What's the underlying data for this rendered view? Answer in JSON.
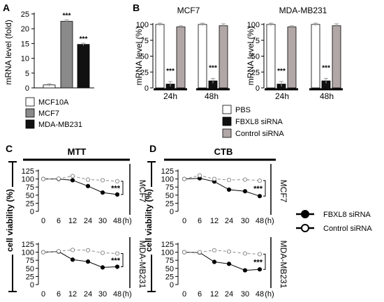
{
  "colors": {
    "white_fill": "#ffffff",
    "gray_fill": "#8a8a8a",
    "black_fill": "#111111",
    "light_gray_fill": "#b2a7a7",
    "error_bar": "#999999",
    "dashed_line": "#8a8a8a"
  },
  "charts": {
    "A": {
      "panel_label": "A",
      "type": "bar",
      "ylabel": "mRNA level (fold)",
      "ylim": [
        0,
        25
      ],
      "yticks": [
        0,
        5,
        10,
        15,
        20,
        25
      ],
      "bars": [
        {
          "name": "MCF10A",
          "value": 1.0,
          "err": 0.4,
          "fill": "white",
          "sig": ""
        },
        {
          "name": "MCF7",
          "value": 22.5,
          "err": 0.5,
          "fill": "gray",
          "sig": "***"
        },
        {
          "name": "MDA-MB231",
          "value": 14.7,
          "err": 0.4,
          "fill": "black",
          "sig": "***"
        }
      ]
    },
    "B": {
      "panel_label": "B",
      "type": "bar",
      "ylabel": "mRNA level (%)",
      "ylim": [
        0,
        100
      ],
      "yticks": [
        0,
        25,
        50,
        75,
        100
      ],
      "legend": [
        {
          "name": "PBS",
          "fill": "white"
        },
        {
          "name": "FBXL8 siRNA",
          "fill": "black"
        },
        {
          "name": "Control siRNA",
          "fill": "light_gray"
        }
      ],
      "subcharts": [
        {
          "title": "MCF7",
          "groups": [
            {
              "label": "24h",
              "values": [
                100,
                6,
                96
              ],
              "errs": [
                2,
                4,
                2
              ],
              "sig": [
                "",
                "***",
                ""
              ]
            },
            {
              "label": "48h",
              "values": [
                100,
                11,
                98
              ],
              "errs": [
                2,
                4,
                3
              ],
              "sig": [
                "",
                "***",
                ""
              ]
            }
          ]
        },
        {
          "title": "MDA-MB231",
          "groups": [
            {
              "label": "24h",
              "values": [
                100,
                6,
                96
              ],
              "errs": [
                2,
                4,
                2
              ],
              "sig": [
                "",
                "***",
                ""
              ]
            },
            {
              "label": "48h",
              "values": [
                100,
                11,
                98
              ],
              "errs": [
                2,
                4,
                3
              ],
              "sig": [
                "",
                "***",
                ""
              ]
            }
          ]
        }
      ]
    },
    "C": {
      "panel_label": "C",
      "header": "MTT",
      "type": "line",
      "ylabel": "cell viability (%)",
      "x": [
        0,
        6,
        12,
        24,
        30,
        48
      ],
      "xlabels": [
        "0",
        "6",
        "12",
        "24",
        "30",
        "48"
      ],
      "xunit": "(h)",
      "ylim": [
        0,
        125
      ],
      "yticks": [
        0,
        25,
        50,
        75,
        100,
        125
      ],
      "rows": [
        {
          "cell_line": "MCF7",
          "sig": "***",
          "series": [
            {
              "name": "FBXL8 siRNA",
              "values": [
                100,
                100,
                96,
                78,
                58,
                52
              ]
            },
            {
              "name": "Control siRNA",
              "values": [
                100,
                101,
                109,
                98,
                96,
                93
              ]
            }
          ]
        },
        {
          "cell_line": "MDA-MB231",
          "sig": "***",
          "series": [
            {
              "name": "FBXL8 siRNA",
              "values": [
                100,
                102,
                77,
                71,
                53,
                55
              ]
            },
            {
              "name": "Control siRNA",
              "values": [
                100,
                103,
                107,
                106,
                98,
                96
              ]
            }
          ]
        }
      ]
    },
    "D": {
      "panel_label": "D",
      "header": "CTB",
      "type": "line",
      "ylabel": "cell viability (%)",
      "x": [
        0,
        6,
        12,
        24,
        30,
        48
      ],
      "xlabels": [
        "0",
        "6",
        "12",
        "24",
        "30",
        "48"
      ],
      "xunit": "(h)",
      "ylim": [
        0,
        125
      ],
      "yticks": [
        0,
        25,
        50,
        75,
        100,
        125
      ],
      "rows": [
        {
          "cell_line": "MCF7",
          "sig": "***",
          "series": [
            {
              "name": "FBXL8 siRNA",
              "values": [
                100,
                102,
                92,
                67,
                62,
                47
              ]
            },
            {
              "name": "Control siRNA",
              "values": [
                100,
                111,
                100,
                97,
                98,
                95
              ]
            }
          ]
        },
        {
          "cell_line": "MDA-MB231",
          "sig": "***",
          "series": [
            {
              "name": "FBXL8 siRNA",
              "values": [
                100,
                99,
                70,
                64,
                44,
                47
              ]
            },
            {
              "name": "Control siRNA",
              "values": [
                100,
                100,
                106,
                102,
                96,
                94
              ]
            }
          ]
        }
      ]
    }
  },
  "line_legend": [
    {
      "name": "FBXL8 siRNA",
      "marker": "filled"
    },
    {
      "name": "Control siRNA",
      "marker": "open"
    }
  ]
}
